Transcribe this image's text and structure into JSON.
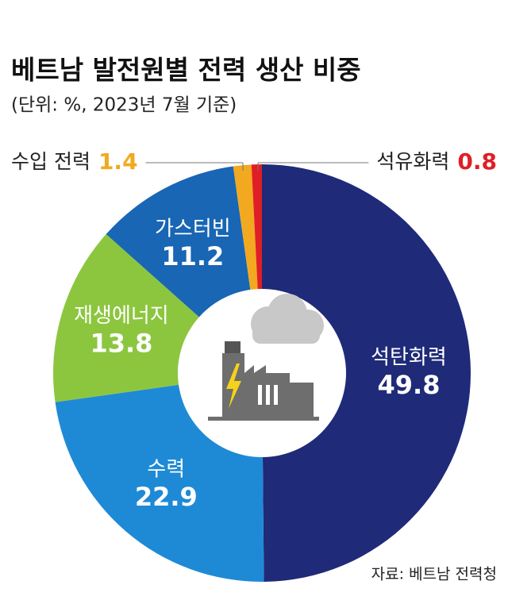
{
  "chart_data": {
    "type": "donut",
    "title": "베트남 발전원별 전력 생산 비중",
    "subtitle": "(단위: %, 2023년 7월 기준)",
    "source": "자료: 베트남 전력청",
    "categories": [
      "석탄화력",
      "수력",
      "재생에너지",
      "가스터빈",
      "수입 전력",
      "석유화력"
    ],
    "values": [
      49.8,
      22.9,
      13.8,
      11.2,
      1.4,
      0.8
    ],
    "colors": [
      "#1f2a78",
      "#1e8ad6",
      "#8cc63f",
      "#1866b4",
      "#f2a91f",
      "#e01e26"
    ]
  }
}
